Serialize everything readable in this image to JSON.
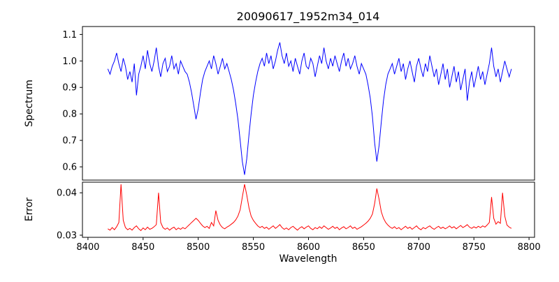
{
  "chart_data": {
    "type": "line",
    "title": "20090617_1952m34_014",
    "xlabel": "Wavelength",
    "grid": false,
    "legend": null,
    "xlim": [
      8395,
      8805
    ],
    "xticks": [
      8400,
      8450,
      8500,
      8550,
      8600,
      8650,
      8700,
      8750,
      8800
    ],
    "xtick_labels": [
      "8400",
      "8450",
      "8500",
      "8550",
      "8600",
      "8650",
      "8700",
      "8750",
      "8800"
    ],
    "x": [
      8418,
      8420,
      8422,
      8424,
      8426,
      8428,
      8430,
      8432,
      8434,
      8436,
      8438,
      8440,
      8442,
      8444,
      8446,
      8448,
      8450,
      8452,
      8454,
      8456,
      8458,
      8460,
      8462,
      8464,
      8466,
      8468,
      8470,
      8472,
      8474,
      8476,
      8478,
      8480,
      8482,
      8484,
      8486,
      8488,
      8490,
      8492,
      8494,
      8496,
      8498,
      8500,
      8502,
      8504,
      8506,
      8508,
      8510,
      8512,
      8514,
      8516,
      8518,
      8520,
      8522,
      8524,
      8526,
      8528,
      8530,
      8532,
      8534,
      8536,
      8538,
      8540,
      8542,
      8544,
      8546,
      8548,
      8550,
      8552,
      8554,
      8556,
      8558,
      8560,
      8562,
      8564,
      8566,
      8568,
      8570,
      8572,
      8574,
      8576,
      8578,
      8580,
      8582,
      8584,
      8586,
      8588,
      8590,
      8592,
      8594,
      8596,
      8598,
      8600,
      8602,
      8604,
      8606,
      8608,
      8610,
      8612,
      8614,
      8616,
      8618,
      8620,
      8622,
      8624,
      8626,
      8628,
      8630,
      8632,
      8634,
      8636,
      8638,
      8640,
      8642,
      8644,
      8646,
      8648,
      8650,
      8652,
      8654,
      8656,
      8658,
      8660,
      8662,
      8664,
      8666,
      8668,
      8670,
      8672,
      8674,
      8676,
      8678,
      8680,
      8682,
      8684,
      8686,
      8688,
      8690,
      8692,
      8694,
      8696,
      8698,
      8700,
      8702,
      8704,
      8706,
      8708,
      8710,
      8712,
      8714,
      8716,
      8718,
      8720,
      8722,
      8724,
      8726,
      8728,
      8730,
      8732,
      8734,
      8736,
      8738,
      8740,
      8742,
      8744,
      8746,
      8748,
      8750,
      8752,
      8754,
      8756,
      8758,
      8760,
      8762,
      8764,
      8766,
      8768,
      8770,
      8772,
      8774,
      8776,
      8778,
      8780,
      8782,
      8784
    ],
    "panels": [
      {
        "name": "spectrum",
        "ylabel": "Spectrum",
        "color": "#0000ff",
        "ylim": [
          0.55,
          1.13
        ],
        "yticks": [
          0.6,
          0.7,
          0.8,
          0.9,
          1.0,
          1.1
        ],
        "ytick_labels": [
          "0.6",
          "0.7",
          "0.8",
          "0.9",
          "1.0",
          "1.1"
        ],
        "absorption_features": [
          {
            "center": 8498,
            "depth_min": 0.78
          },
          {
            "center": 8542,
            "depth_min": 0.57
          },
          {
            "center": 8662,
            "depth_min": 0.62
          }
        ],
        "values": [
          0.97,
          0.95,
          0.98,
          1.0,
          1.03,
          0.99,
          0.96,
          1.01,
          0.98,
          0.93,
          0.96,
          0.92,
          0.99,
          0.87,
          0.95,
          0.98,
          1.02,
          0.97,
          1.04,
          0.99,
          0.96,
          1.0,
          1.05,
          0.98,
          0.94,
          0.99,
          1.01,
          0.96,
          0.98,
          1.02,
          0.97,
          0.99,
          0.95,
          1.0,
          0.98,
          0.96,
          0.95,
          0.92,
          0.88,
          0.83,
          0.78,
          0.82,
          0.88,
          0.93,
          0.96,
          0.98,
          1.0,
          0.97,
          1.02,
          0.99,
          0.95,
          0.98,
          1.01,
          0.97,
          0.99,
          0.96,
          0.93,
          0.89,
          0.84,
          0.78,
          0.7,
          0.62,
          0.57,
          0.63,
          0.72,
          0.8,
          0.87,
          0.92,
          0.96,
          0.99,
          1.01,
          0.98,
          1.03,
          0.99,
          1.02,
          0.97,
          1.0,
          1.04,
          1.07,
          1.02,
          0.99,
          1.03,
          0.98,
          1.0,
          0.96,
          1.01,
          0.98,
          0.95,
          1.0,
          1.03,
          0.98,
          0.97,
          1.01,
          0.99,
          0.94,
          0.98,
          1.02,
          0.99,
          1.05,
          1.0,
          0.97,
          1.01,
          0.98,
          1.02,
          0.99,
          0.96,
          1.0,
          1.03,
          0.98,
          1.01,
          0.97,
          0.99,
          1.02,
          0.98,
          0.95,
          0.99,
          0.97,
          0.95,
          0.91,
          0.86,
          0.79,
          0.69,
          0.62,
          0.68,
          0.77,
          0.85,
          0.91,
          0.95,
          0.97,
          0.99,
          0.95,
          0.98,
          1.01,
          0.96,
          0.99,
          0.93,
          0.97,
          1.0,
          0.96,
          0.92,
          0.98,
          1.01,
          0.97,
          0.94,
          0.99,
          0.96,
          1.02,
          0.98,
          0.94,
          0.97,
          0.91,
          0.95,
          0.99,
          0.93,
          0.97,
          0.9,
          0.94,
          0.98,
          0.92,
          0.96,
          0.89,
          0.93,
          0.97,
          0.85,
          0.92,
          0.96,
          0.9,
          0.94,
          0.98,
          0.93,
          0.96,
          0.91,
          0.95,
          0.99,
          1.05,
          0.98,
          0.94,
          0.97,
          0.92,
          0.96,
          1.0,
          0.97,
          0.94,
          0.97
        ]
      },
      {
        "name": "error",
        "ylabel": "Error",
        "color": "#ff0000",
        "ylim": [
          0.0295,
          0.0425
        ],
        "yticks": [
          0.03,
          0.04
        ],
        "ytick_labels": [
          "0.03",
          "0.04"
        ],
        "spike_features": [
          {
            "center": 8430,
            "peak": 0.042
          },
          {
            "center": 8464,
            "peak": 0.04
          },
          {
            "center": 8542,
            "peak": 0.042
          },
          {
            "center": 8662,
            "peak": 0.041
          },
          {
            "center": 8766,
            "peak": 0.039
          },
          {
            "center": 8776,
            "peak": 0.04
          }
        ],
        "values": [
          0.0315,
          0.0312,
          0.0318,
          0.0313,
          0.032,
          0.033,
          0.042,
          0.0335,
          0.0318,
          0.0313,
          0.0316,
          0.0312,
          0.0318,
          0.0322,
          0.0315,
          0.0311,
          0.0317,
          0.0313,
          0.0319,
          0.0314,
          0.0316,
          0.032,
          0.0325,
          0.04,
          0.033,
          0.0318,
          0.0314,
          0.0317,
          0.0312,
          0.0316,
          0.0319,
          0.0313,
          0.0317,
          0.0314,
          0.0318,
          0.0315,
          0.032,
          0.0325,
          0.033,
          0.0335,
          0.034,
          0.0335,
          0.0328,
          0.0322,
          0.0318,
          0.0321,
          0.0316,
          0.033,
          0.0322,
          0.0358,
          0.0335,
          0.0324,
          0.0318,
          0.0315,
          0.0319,
          0.0322,
          0.0326,
          0.033,
          0.0336,
          0.0345,
          0.036,
          0.039,
          0.042,
          0.0395,
          0.0365,
          0.0345,
          0.0335,
          0.0328,
          0.0322,
          0.0318,
          0.0321,
          0.0316,
          0.0319,
          0.0314,
          0.0318,
          0.0322,
          0.0316,
          0.032,
          0.0325,
          0.0318,
          0.0314,
          0.0317,
          0.0313,
          0.0318,
          0.0321,
          0.0316,
          0.0312,
          0.0317,
          0.032,
          0.0315,
          0.0319,
          0.0322,
          0.0316,
          0.0313,
          0.0318,
          0.0315,
          0.032,
          0.0316,
          0.0322,
          0.0318,
          0.0314,
          0.0317,
          0.0321,
          0.0316,
          0.0319,
          0.0313,
          0.0317,
          0.032,
          0.0315,
          0.0318,
          0.0322,
          0.0316,
          0.0319,
          0.0314,
          0.0317,
          0.032,
          0.0324,
          0.0328,
          0.0333,
          0.034,
          0.035,
          0.0375,
          0.041,
          0.0385,
          0.0355,
          0.034,
          0.033,
          0.0324,
          0.0319,
          0.0316,
          0.032,
          0.0315,
          0.0318,
          0.0313,
          0.0317,
          0.0321,
          0.0316,
          0.0319,
          0.0314,
          0.0318,
          0.0322,
          0.0316,
          0.0313,
          0.0318,
          0.0315,
          0.0319,
          0.0322,
          0.0317,
          0.0314,
          0.0318,
          0.0321,
          0.0316,
          0.0319,
          0.0315,
          0.0318,
          0.0322,
          0.0317,
          0.032,
          0.0315,
          0.0319,
          0.0323,
          0.0318,
          0.0321,
          0.0325,
          0.0319,
          0.0316,
          0.032,
          0.0317,
          0.0321,
          0.0318,
          0.0322,
          0.0319,
          0.0324,
          0.033,
          0.039,
          0.034,
          0.0326,
          0.0332,
          0.0328,
          0.04,
          0.0345,
          0.0324,
          0.0319,
          0.0316
        ]
      }
    ]
  }
}
